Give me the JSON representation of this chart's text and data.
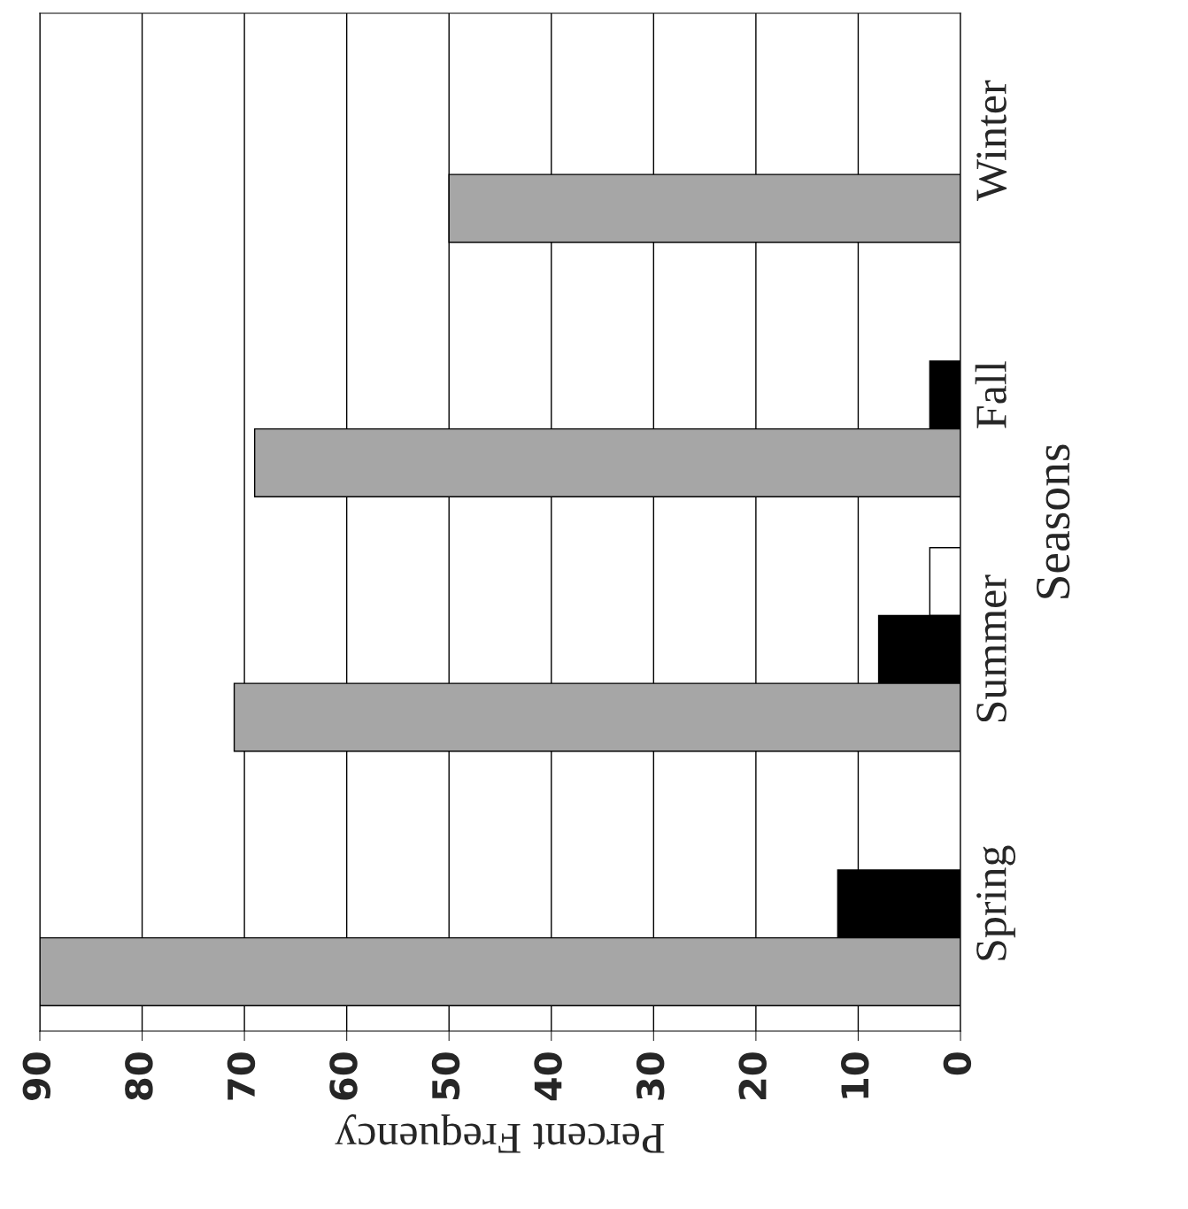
{
  "chart_data": {
    "type": "bar",
    "orientation": "horizontal",
    "xlabel": "Percent Frequency",
    "ylabel": "Seasons",
    "categories": [
      "Winter",
      "Fall",
      "Summer",
      "Spring"
    ],
    "series": [
      {
        "color": "#ffffff",
        "values": [
          0,
          0,
          3,
          0
        ]
      },
      {
        "color": "#000000",
        "values": [
          0,
          3,
          8,
          12
        ]
      },
      {
        "color": "#a6a6a6",
        "values": [
          50,
          69,
          71,
          90
        ]
      }
    ],
    "xlim": [
      90,
      0
    ],
    "xticks": [
      90,
      80,
      70,
      60,
      50,
      40,
      30,
      20,
      10,
      0
    ],
    "grid": "x"
  }
}
